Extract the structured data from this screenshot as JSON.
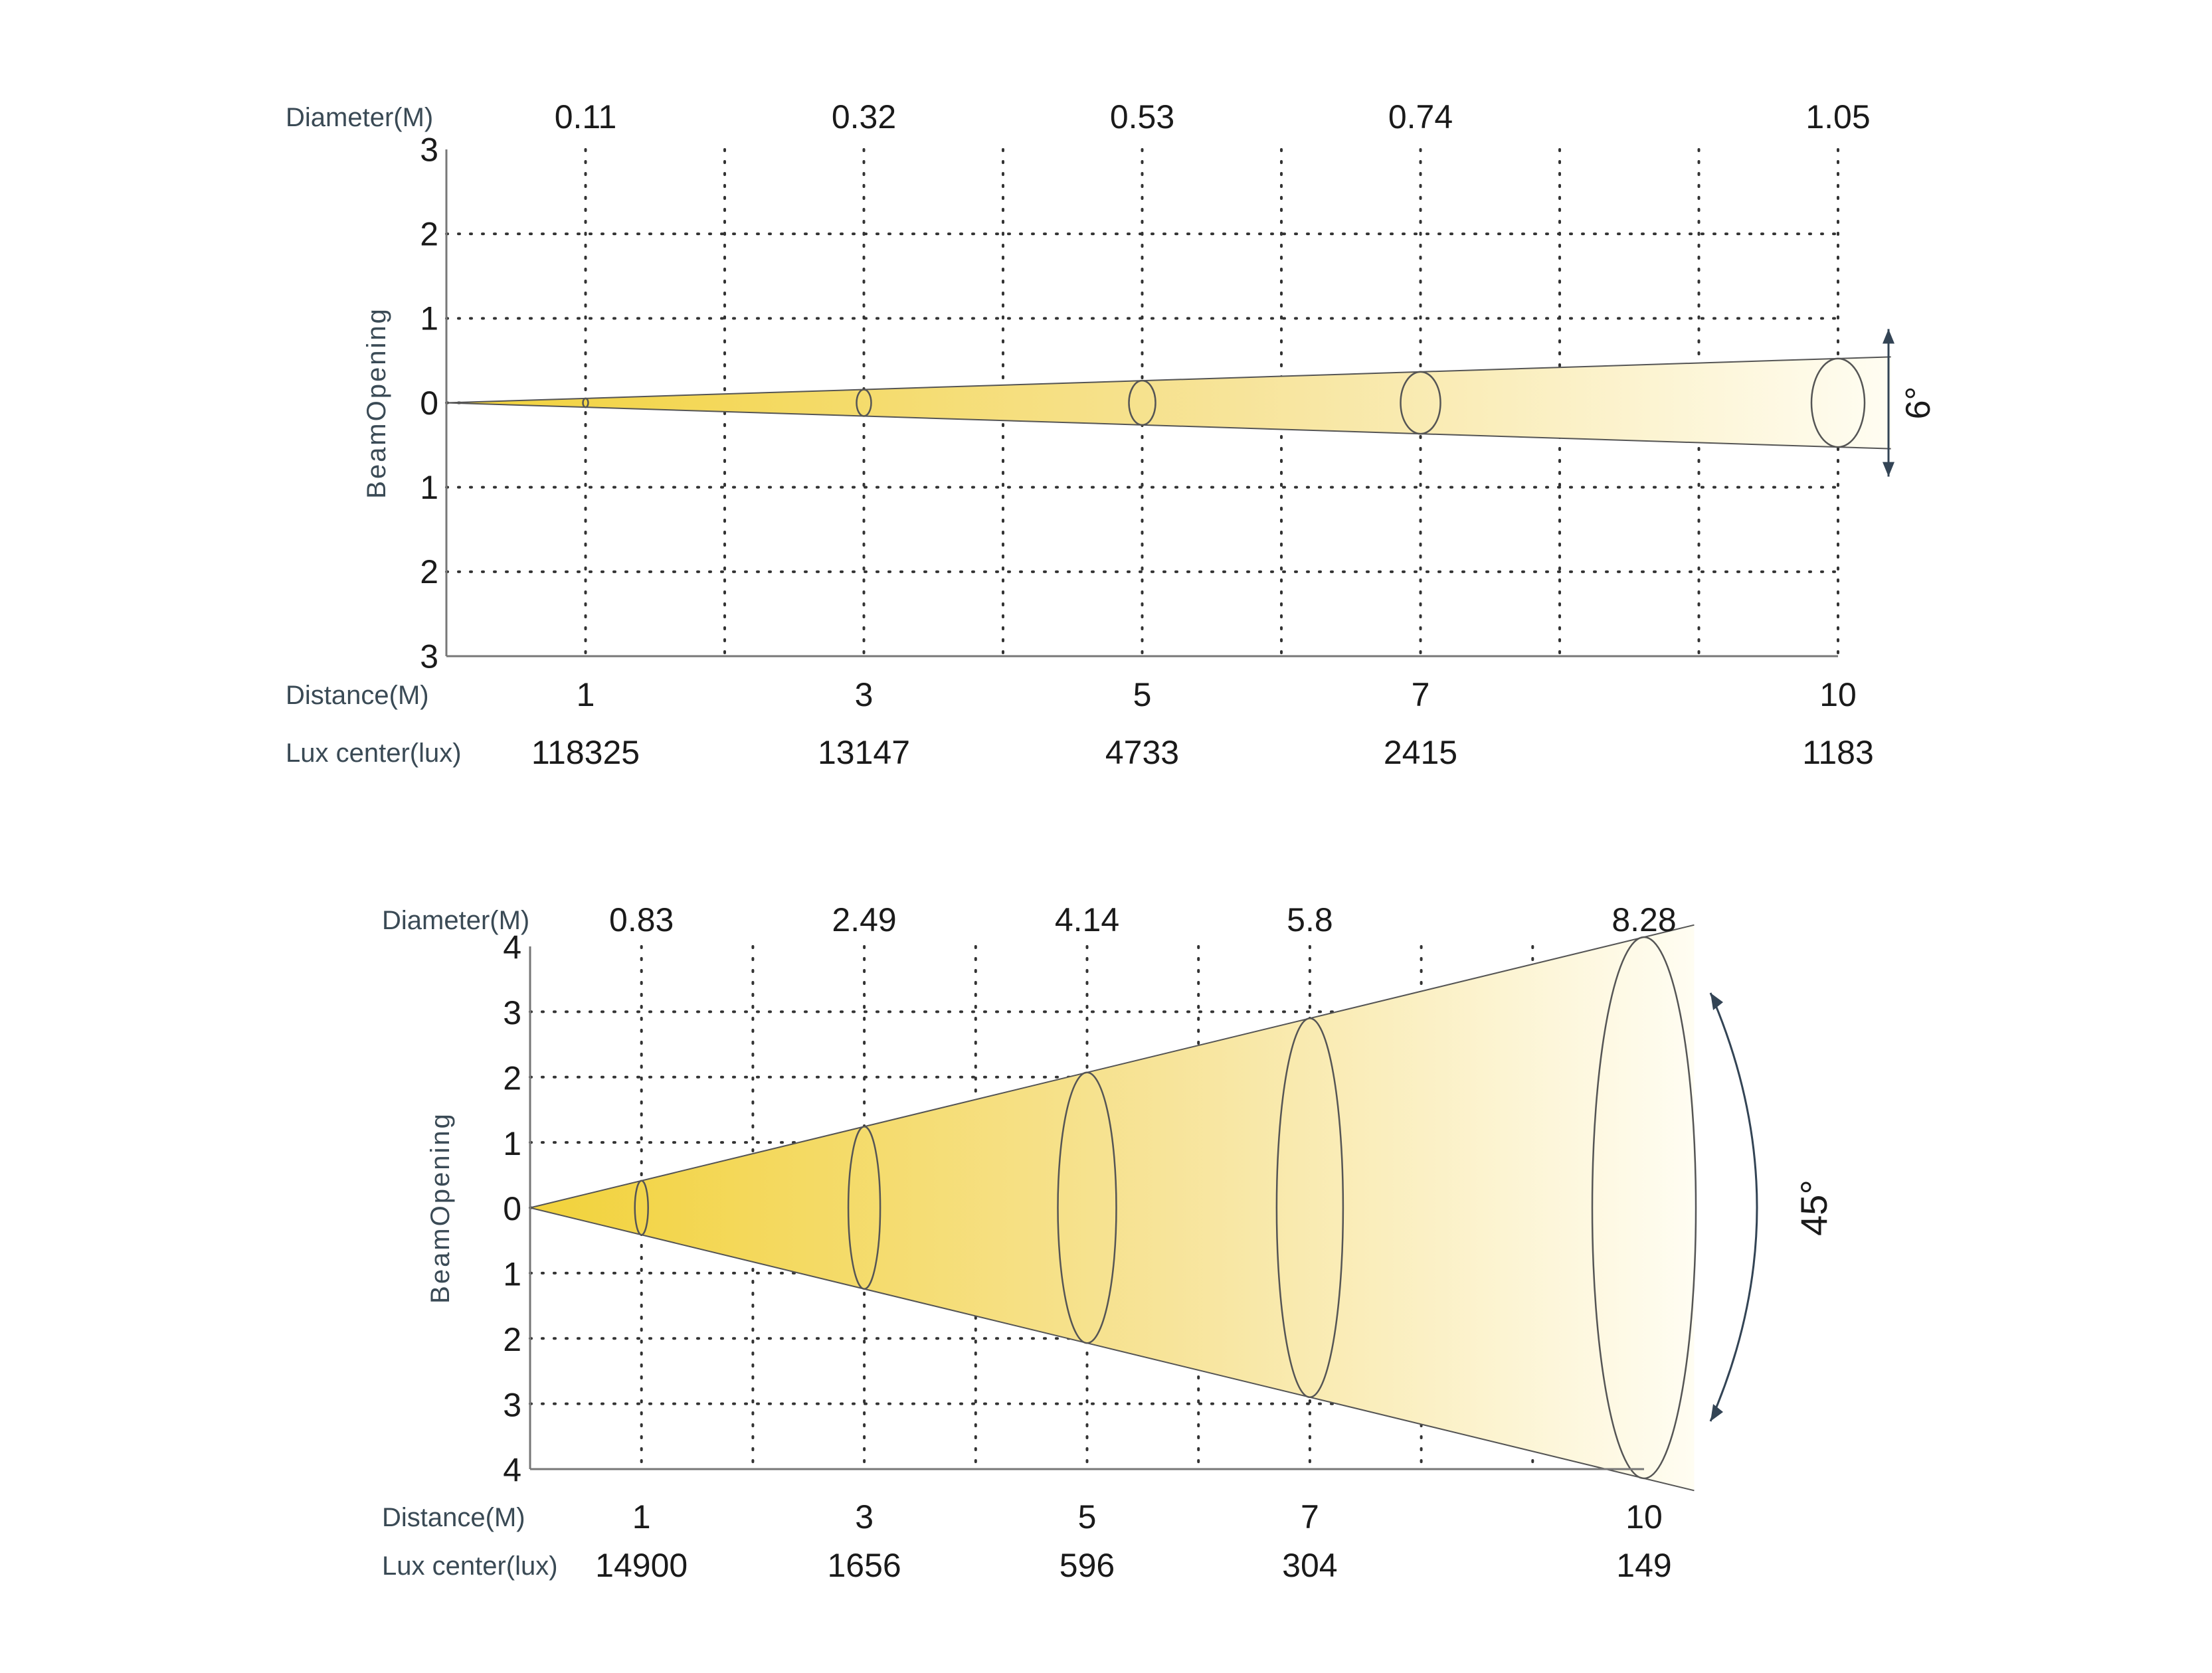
{
  "chart_data": [
    {
      "type": "beam-spread",
      "beam_angle_label": "6°",
      "beam_angle_deg": 6,
      "row_labels": {
        "diameter": "Diameter(M)",
        "distance": "Distance(M)",
        "lux": "Lux center(lux)"
      },
      "ylabel": "BeamOpening",
      "ylim": [
        -3,
        3
      ],
      "yticks": [
        "3",
        "2",
        "1",
        "0",
        "1",
        "2",
        "3"
      ],
      "x_max": 10,
      "distances": [
        1,
        3,
        5,
        7,
        10
      ],
      "distance_labels": [
        "1",
        "3",
        "5",
        "7",
        "10"
      ],
      "diameters": [
        "0.11",
        "0.32",
        "0.53",
        "0.74",
        "1.05"
      ],
      "lux_center": [
        "118325",
        "13147",
        "4733",
        "2415",
        "1183"
      ],
      "grid": true,
      "colors": {
        "beam": "#f2d23a",
        "beam_end": "#fffdf2",
        "outline": "#555555",
        "grid": "#333333"
      }
    },
    {
      "type": "beam-spread",
      "beam_angle_label": "45°",
      "beam_angle_deg": 45,
      "row_labels": {
        "diameter": "Diameter(M)",
        "distance": "Distance(M)",
        "lux": "Lux center(lux)"
      },
      "ylabel": "BeamOpening",
      "ylim": [
        -4,
        4
      ],
      "yticks": [
        "4",
        "3",
        "2",
        "1",
        "0",
        "1",
        "2",
        "3",
        "4"
      ],
      "x_max": 10,
      "distances": [
        1,
        3,
        5,
        7,
        10
      ],
      "distance_labels": [
        "1",
        "3",
        "5",
        "7",
        "10"
      ],
      "diameters": [
        "0.83",
        "2.49",
        "4.14",
        "5.8",
        "8.28"
      ],
      "lux_center": [
        "14900",
        "1656",
        "596",
        "304",
        "149"
      ],
      "grid": true,
      "colors": {
        "beam": "#f2d23a",
        "beam_end": "#fffdf2",
        "outline": "#555555",
        "grid": "#333333"
      }
    }
  ]
}
